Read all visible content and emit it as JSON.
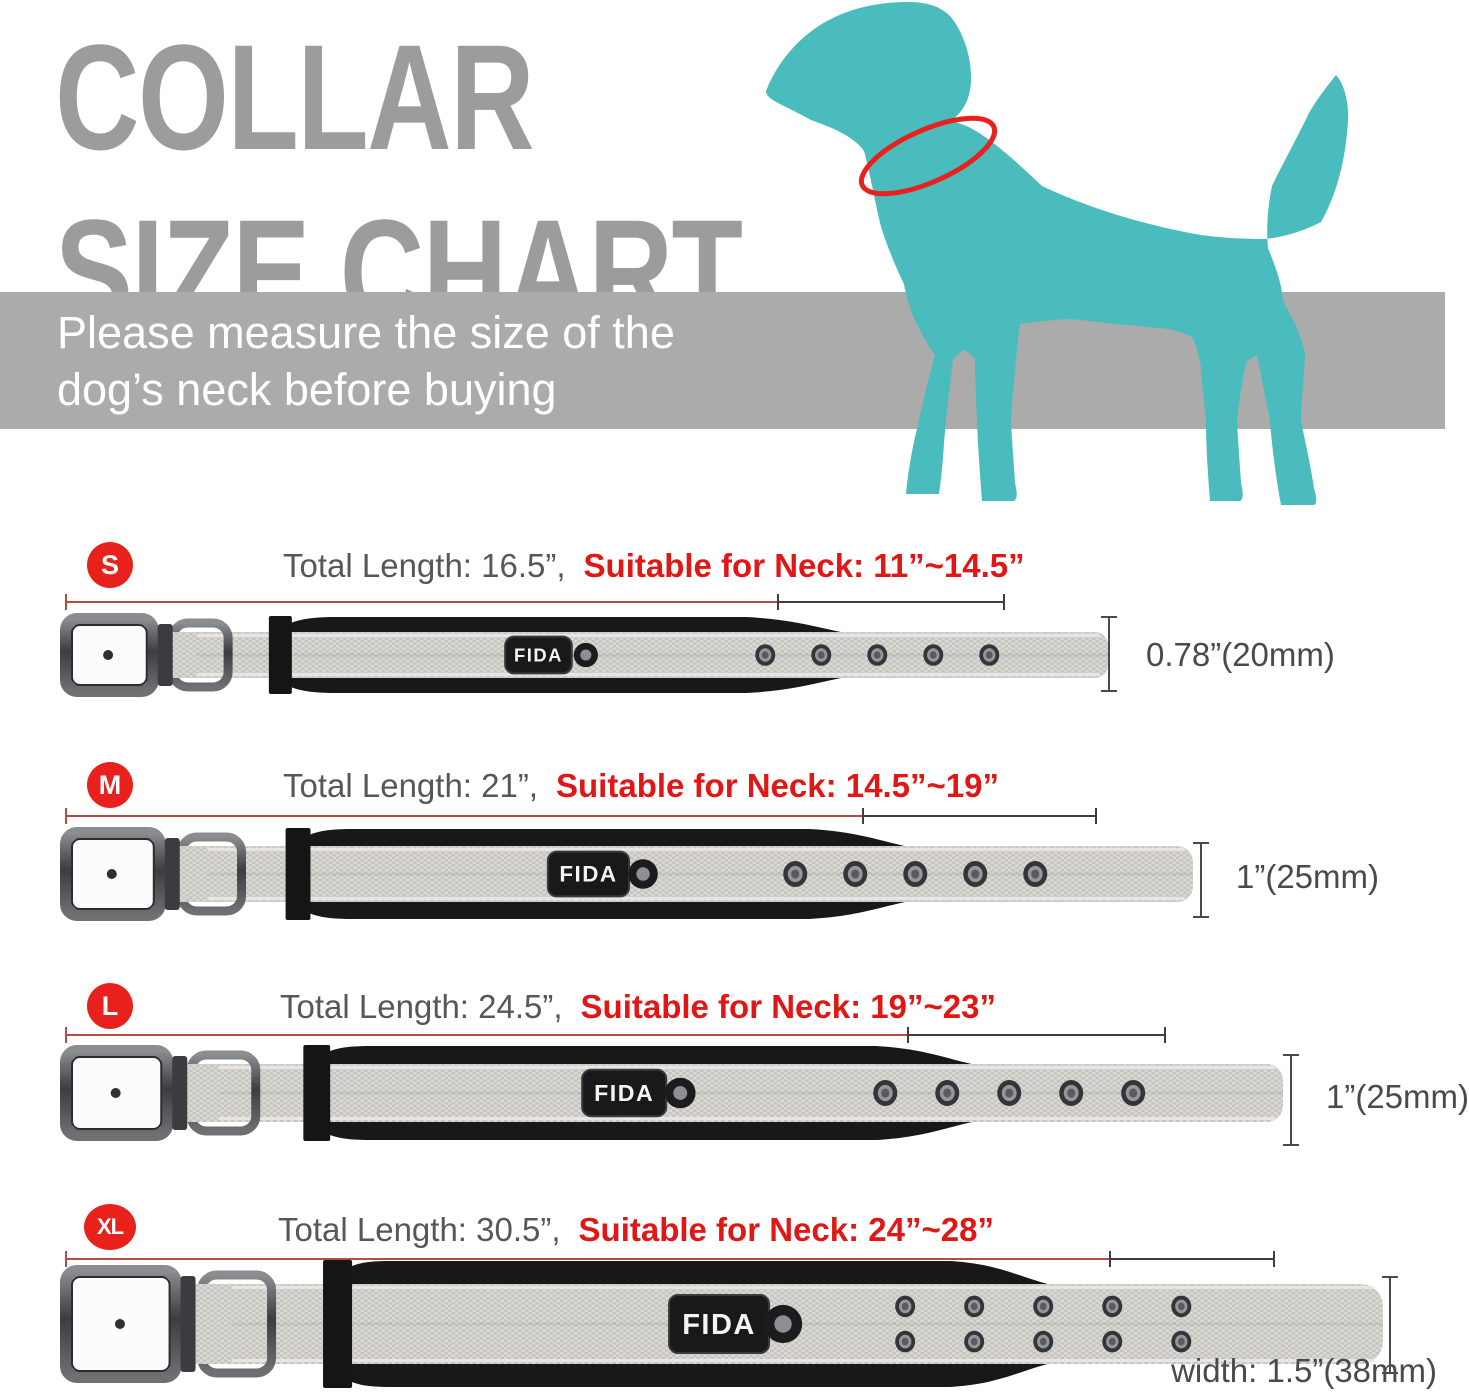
{
  "title": {
    "line1": "COLLAR",
    "line2": "SIZE CHART"
  },
  "banner": {
    "line1": "Please measure the size of the",
    "line2": "dog’s neck before buying"
  },
  "brand": "FIDA",
  "colors": {
    "teal": "#4bbcbd",
    "red_accent": "#e8211d",
    "red_text": "#e01715",
    "title_gray": "#9c9c9c",
    "banner_gray": "#ababab",
    "body_text": "#56575a",
    "ruler_red": "#b34b46",
    "ruler_dark": "#3f3f3f"
  },
  "rows": [
    {
      "size": "S",
      "total_length": "Total Length: 16.5”,",
      "suitable": "Suitable for Neck: 11”~14.5”",
      "width_label": "0.78”(20mm)"
    },
    {
      "size": "M",
      "total_length": "Total Length: 21”,",
      "suitable": "Suitable for Neck: 14.5”~19”",
      "width_label": "1”(25mm)"
    },
    {
      "size": "L",
      "total_length": "Total Length: 24.5”,",
      "suitable": "Suitable for Neck: 19”~23”",
      "width_label": "1”(25mm)"
    },
    {
      "size": "XL",
      "total_length": "Total Length: 30.5”,",
      "suitable": "Suitable for Neck: 24”~28”",
      "width_label": "width: 1.5”(38mm)"
    }
  ]
}
